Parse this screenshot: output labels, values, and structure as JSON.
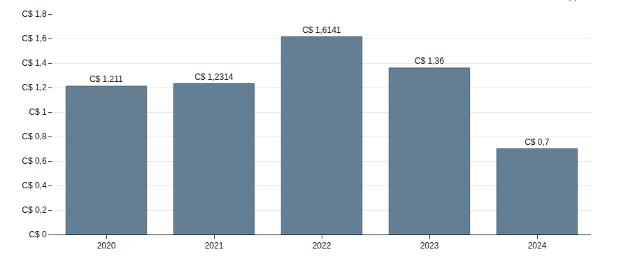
{
  "chart_data": {
    "type": "bar",
    "categories": [
      "2020",
      "2021",
      "2022",
      "2023",
      "2024"
    ],
    "values": [
      1.211,
      1.2314,
      1.6141,
      1.36,
      0.7
    ],
    "value_labels": [
      "C$ 1,211",
      "C$ 1,2314",
      "C$ 1,6141",
      "C$ 1,36",
      "C$ 0,7"
    ],
    "data_labels": true,
    "color": "#647f94",
    "ylim": [
      0,
      1.8
    ],
    "yticks": [
      {
        "value": 0,
        "label": "C$ 0"
      },
      {
        "value": 0.2,
        "label": "C$ 0,2"
      },
      {
        "value": 0.4,
        "label": "C$ 0,4"
      },
      {
        "value": 0.6,
        "label": "C$ 0,6"
      },
      {
        "value": 0.8,
        "label": "C$ 0,8"
      },
      {
        "value": 1,
        "label": "C$ 1"
      },
      {
        "value": 1.2,
        "label": "C$ 1,2"
      },
      {
        "value": 1.4,
        "label": "C$ 1,4"
      },
      {
        "value": 1.6,
        "label": "C$ 1,6"
      },
      {
        "value": 1.8,
        "label": "C$ 1,8"
      }
    ],
    "grid": true,
    "annotations": [
      "(c) Trivano.com"
    ]
  }
}
